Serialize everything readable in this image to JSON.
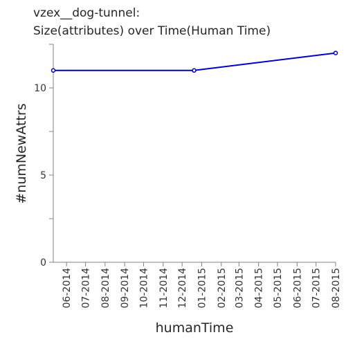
{
  "chart_data": {
    "type": "line",
    "title_lines": [
      "vzex__dog-tunnel:",
      "Size(attributes) over Time(Human Time)"
    ],
    "xlabel": "humanTime",
    "ylabel": "#numNewAttrs",
    "x_ticks": [
      "06-2014",
      "07-2014",
      "08-2014",
      "09-2014",
      "10-2014",
      "11-2014",
      "12-2014",
      "01-2015",
      "02-2015",
      "03-2015",
      "04-2015",
      "05-2015",
      "06-2015",
      "07-2015",
      "08-2015"
    ],
    "x_tick_labels": [
      "06-2014",
      "07-2014",
      "08-2014",
      "09-2014",
      "10-2014",
      "11-2014",
      "12-2014",
      "01-2015",
      "02-2015",
      "03-2015",
      "04-2015",
      "05-2015",
      "06-2015",
      "07-2015",
      "08-2015"
    ],
    "x_range": [
      "2014-05-11",
      "2015-08-01"
    ],
    "y_ticks": [
      0,
      5,
      10
    ],
    "ylim": [
      0,
      12.5
    ],
    "grid": false,
    "series": [
      {
        "color": "#0000cc",
        "points": [
          {
            "x": "2014-05-11",
            "y": 11
          },
          {
            "x": "2014-12-20",
            "y": 11
          },
          {
            "x": "2015-08-01",
            "y": 12
          }
        ]
      }
    ]
  }
}
